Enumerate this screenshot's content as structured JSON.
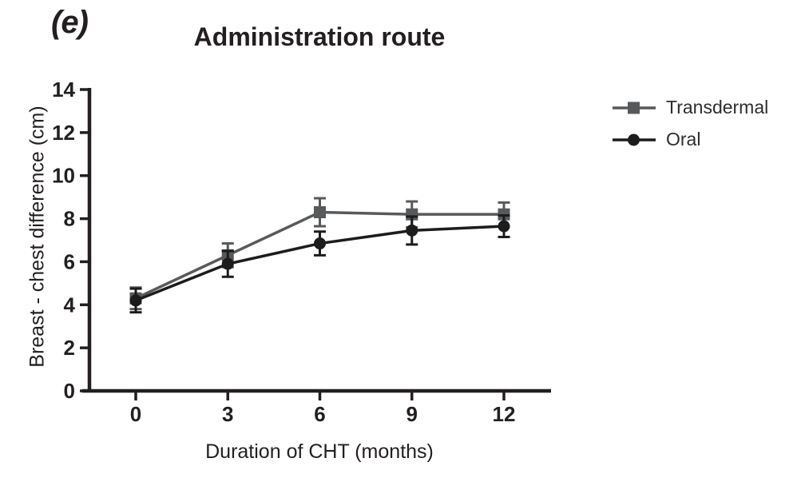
{
  "chart_data": {
    "type": "line",
    "panel_label": "(e)",
    "title": "Administration route",
    "xlabel": "Duration of CHT (months)",
    "ylabel": "Breast - chest difference (cm)",
    "x": [
      0,
      3,
      6,
      9,
      12
    ],
    "xtick_labels": [
      "0",
      "3",
      "6",
      "9",
      "12"
    ],
    "yticks": [
      0,
      2,
      4,
      6,
      8,
      10,
      12,
      14
    ],
    "xlim": [
      0,
      12
    ],
    "ylim": [
      0,
      14
    ],
    "grid": false,
    "legend_position": "right-outside",
    "error_bar_style": "symmetric-caps",
    "series": [
      {
        "name": "Transdermal",
        "marker": "square",
        "color": "#58595b",
        "values": [
          4.3,
          6.3,
          8.3,
          8.2,
          8.2
        ],
        "errors": [
          0.5,
          0.55,
          0.65,
          0.6,
          0.55
        ]
      },
      {
        "name": "Oral",
        "marker": "circle",
        "color": "#1c1c1c",
        "values": [
          4.2,
          5.9,
          6.85,
          7.45,
          7.65
        ],
        "errors": [
          0.55,
          0.6,
          0.55,
          0.65,
          0.5
        ]
      }
    ],
    "colors": {
      "axis": "#231f20",
      "text": "#231f20"
    }
  }
}
